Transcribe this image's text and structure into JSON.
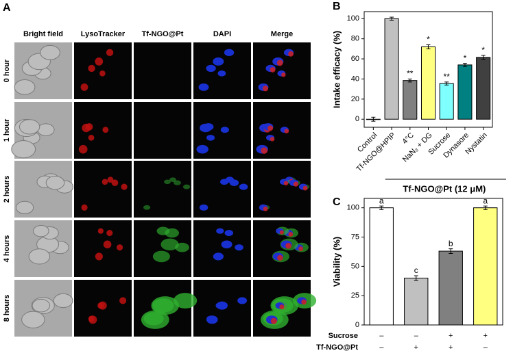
{
  "panel_a": {
    "label": "A",
    "columns": [
      "Bright field",
      "LysoTracker",
      "Tf-NGO@Pt",
      "DAPI",
      "Merge"
    ],
    "rows": [
      "0 hour",
      "1 hour",
      "2 hours",
      "4 hours",
      "8 hours"
    ]
  },
  "chart_data": [
    {
      "type": "bar",
      "label": "B",
      "ylabel": "Intake efficacy (%)",
      "categories": [
        "Control",
        "Tf-NGO@HPIP",
        "4°C",
        "NaN₃ + DG",
        "Sucrose",
        "Dynasore",
        "Nystatin"
      ],
      "values": [
        0,
        100,
        38.5,
        72,
        35.5,
        54,
        61.5
      ],
      "errors": [
        2,
        1.5,
        1.5,
        2,
        1.5,
        1.5,
        2
      ],
      "colors": [
        "#ffffff",
        "#c0c0c0",
        "#808080",
        "#ffff80",
        "#80ffff",
        "#008080",
        "#404040"
      ],
      "annotations": [
        null,
        null,
        "**",
        "*",
        "**",
        "*",
        "*"
      ],
      "group_label": "Tf-NGO@Pt (12 μM)",
      "ylim": [
        -8,
        107
      ],
      "yticks": [
        0,
        20,
        40,
        60,
        80,
        100
      ]
    },
    {
      "type": "bar",
      "label": "C",
      "ylabel": "Viability (%)",
      "values": [
        100,
        40,
        63,
        100
      ],
      "errors": [
        1.5,
        2,
        2,
        1.5
      ],
      "colors": [
        "#ffffff",
        "#c0c0c0",
        "#808080",
        "#ffff80"
      ],
      "annotations": [
        "a",
        "c",
        "b",
        "a"
      ],
      "conditions": [
        {
          "name": "Sucrose",
          "marks": [
            "–",
            "–",
            "+",
            "+"
          ]
        },
        {
          "name": "Tf-NGO@Pt",
          "marks": [
            "–",
            "+",
            "+",
            "–"
          ]
        }
      ],
      "ylim": [
        0,
        108
      ],
      "yticks": [
        0,
        25,
        50,
        75,
        100
      ]
    }
  ]
}
